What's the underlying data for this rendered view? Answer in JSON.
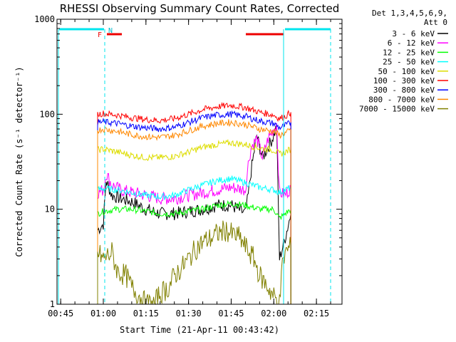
{
  "chart_data": {
    "type": "line",
    "title": "RHESSI Observing Summary Count Rates, Corrected",
    "xlabel": "Start Time (21-Apr-11 00:43:42)",
    "ylabel": "Corrected Count Rate (s⁻¹ detector⁻¹)",
    "y_scale": "log",
    "ylim": [
      1,
      1000
    ],
    "xlim": [
      "00:43:42",
      "02:24:00"
    ],
    "x_tick_labels": [
      "00:45",
      "01:00",
      "01:15",
      "01:30",
      "01:45",
      "02:00",
      "02:15"
    ],
    "y_tick_labels": [
      "1",
      "10",
      "100",
      "1000"
    ],
    "legend_position": "outside-right",
    "legend_header": [
      "Det 1,3,4,5,6,9,",
      "Att 0"
    ],
    "series": [
      {
        "name": "3 - 6 keV",
        "color": "#000000",
        "x": [
          "00:58",
          "00:59",
          "01:00",
          "01:01",
          "01:03",
          "01:06",
          "01:10",
          "01:15",
          "01:20",
          "01:25",
          "01:30",
          "01:35",
          "01:40",
          "01:45",
          "01:50",
          "01:51",
          "01:52",
          "01:54",
          "01:56",
          "01:58",
          "02:00",
          "02:01",
          "02:02",
          "02:04",
          "02:06"
        ],
        "y": [
          6,
          6.5,
          7,
          20,
          14,
          13,
          12,
          10,
          9,
          9,
          9.5,
          10,
          11,
          11,
          9,
          14,
          25,
          60,
          35,
          45,
          60,
          75,
          3,
          5,
          9
        ]
      },
      {
        "name": "6 - 12 keV",
        "color": "#ff00ff",
        "x": [
          "00:58",
          "01:00",
          "01:01",
          "01:03",
          "01:06",
          "01:10",
          "01:15",
          "01:20",
          "01:25",
          "01:30",
          "01:35",
          "01:40",
          "01:45",
          "01:50",
          "01:51",
          "01:52",
          "01:54",
          "01:56",
          "01:58",
          "02:00",
          "02:01",
          "02:02",
          "02:04",
          "02:06"
        ],
        "y": [
          15,
          16,
          24,
          18,
          16,
          15,
          14,
          13,
          13,
          14,
          15,
          16,
          17,
          16,
          30,
          45,
          55,
          35,
          55,
          70,
          80,
          15,
          14,
          17
        ]
      },
      {
        "name": "12 - 25 keV",
        "color": "#00ff00",
        "x": [
          "00:58",
          "01:00",
          "01:05",
          "01:10",
          "01:15",
          "01:20",
          "01:25",
          "01:30",
          "01:35",
          "01:40",
          "01:45",
          "01:50",
          "01:55",
          "02:00",
          "02:02",
          "02:04",
          "02:06"
        ],
        "y": [
          9,
          9.5,
          10,
          10,
          9.5,
          9,
          9,
          9.5,
          10,
          11,
          11.5,
          11,
          10,
          10,
          8,
          9,
          10
        ]
      },
      {
        "name": "25 - 50 keV",
        "color": "#00ffff",
        "x": [
          "00:58",
          "01:00",
          "01:05",
          "01:10",
          "01:15",
          "01:20",
          "01:25",
          "01:30",
          "01:35",
          "01:40",
          "01:45",
          "01:50",
          "01:55",
          "02:00",
          "02:02",
          "02:04",
          "02:06"
        ],
        "y": [
          16,
          16.5,
          16,
          15,
          14,
          13.5,
          14,
          16,
          18,
          20,
          21,
          19,
          17,
          16,
          15,
          16,
          17
        ]
      },
      {
        "name": "50 - 100 keV",
        "color": "#dddd00",
        "x": [
          "00:58",
          "01:00",
          "01:05",
          "01:10",
          "01:15",
          "01:20",
          "01:25",
          "01:30",
          "01:35",
          "01:40",
          "01:45",
          "01:50",
          "01:55",
          "02:00",
          "02:02",
          "02:04",
          "02:06"
        ],
        "y": [
          42,
          43,
          40,
          37,
          35,
          35,
          36,
          40,
          45,
          48,
          50,
          48,
          44,
          42,
          38,
          40,
          43
        ]
      },
      {
        "name": "100 - 300 keV",
        "color": "#ff0000",
        "x": [
          "00:58",
          "01:00",
          "01:05",
          "01:10",
          "01:15",
          "01:20",
          "01:25",
          "01:30",
          "01:35",
          "01:40",
          "01:45",
          "01:50",
          "01:55",
          "02:00",
          "02:02",
          "02:04",
          "02:06"
        ],
        "y": [
          100,
          102,
          98,
          92,
          88,
          86,
          90,
          100,
          112,
          120,
          124,
          118,
          105,
          98,
          90,
          95,
          105
        ]
      },
      {
        "name": "300 - 800 keV",
        "color": "#0000ff",
        "x": [
          "00:58",
          "01:00",
          "01:05",
          "01:10",
          "01:15",
          "01:20",
          "01:25",
          "01:30",
          "01:35",
          "01:40",
          "01:45",
          "01:50",
          "01:55",
          "02:00",
          "02:02",
          "02:04",
          "02:06"
        ],
        "y": [
          82,
          83,
          80,
          75,
          72,
          70,
          73,
          82,
          92,
          98,
          100,
          95,
          85,
          80,
          72,
          76,
          82
        ]
      },
      {
        "name": "800 - 7000 keV",
        "color": "#ff8800",
        "x": [
          "00:58",
          "01:00",
          "01:05",
          "01:10",
          "01:15",
          "01:20",
          "01:25",
          "01:30",
          "01:35",
          "01:40",
          "01:45",
          "01:50",
          "01:55",
          "02:00",
          "02:02",
          "02:04",
          "02:06"
        ],
        "y": [
          68,
          70,
          66,
          61,
          58,
          57,
          60,
          67,
          75,
          80,
          82,
          78,
          70,
          66,
          60,
          63,
          68
        ]
      },
      {
        "name": "7000 - 15000 keV",
        "color": "#808000",
        "x": [
          "00:58",
          "01:00",
          "01:03",
          "01:05",
          "01:08",
          "01:10",
          "01:13",
          "01:15",
          "01:18",
          "01:20",
          "01:23",
          "01:25",
          "01:28",
          "01:30",
          "01:33",
          "01:35",
          "01:38",
          "01:40",
          "01:43",
          "01:45",
          "01:48",
          "01:50",
          "01:53",
          "01:55",
          "01:58",
          "02:00",
          "02:02",
          "02:03",
          "02:04",
          "02:06"
        ],
        "y": [
          3.5,
          3,
          3.5,
          2.2,
          2,
          1.5,
          1.2,
          1,
          1,
          1.3,
          1.5,
          2,
          2.5,
          3,
          4,
          4.5,
          5,
          5.5,
          6,
          5.5,
          5,
          4,
          3,
          2,
          1.5,
          1.2,
          1,
          2.5,
          3.5,
          4
        ]
      }
    ],
    "annotations": {
      "flag_labels": [
        "F",
        "N"
      ]
    }
  }
}
